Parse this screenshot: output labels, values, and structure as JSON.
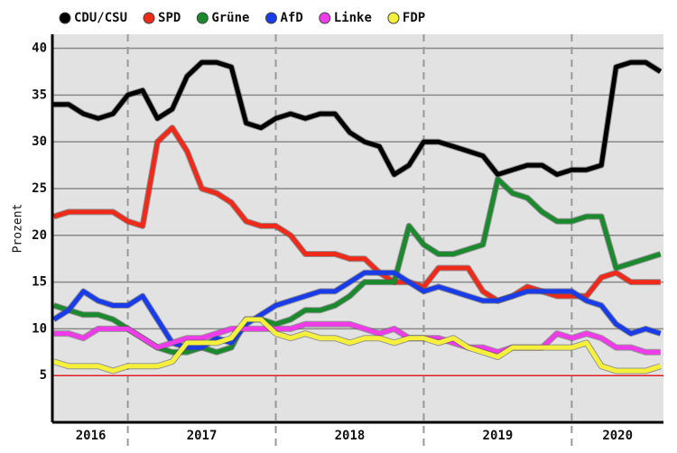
{
  "chart_data": {
    "type": "line",
    "ylabel": "Prozent",
    "x": [
      2016.5,
      2016.6,
      2016.7,
      2016.8,
      2016.9,
      2017.0,
      2017.1,
      2017.2,
      2017.3,
      2017.4,
      2017.5,
      2017.6,
      2017.7,
      2017.8,
      2017.9,
      2018.0,
      2018.1,
      2018.2,
      2018.3,
      2018.4,
      2018.5,
      2018.6,
      2018.7,
      2018.8,
      2018.9,
      2019.0,
      2019.1,
      2019.2,
      2019.3,
      2019.4,
      2019.5,
      2019.6,
      2019.7,
      2019.8,
      2019.9,
      2020.0,
      2020.1,
      2020.2,
      2020.3,
      2020.4,
      2020.5,
      2020.6
    ],
    "series": [
      {
        "name": "CDU/CSU",
        "color": "#000000",
        "values": [
          34,
          34,
          33,
          32.5,
          33,
          35,
          35.5,
          32.5,
          33.5,
          37,
          38.5,
          38.5,
          38,
          32,
          31.5,
          32.5,
          33,
          32.5,
          33,
          33,
          31,
          30,
          29.5,
          26.5,
          27.5,
          30,
          30,
          29.5,
          29,
          28.5,
          26.5,
          27,
          27.5,
          27.5,
          26.5,
          27,
          27,
          27.5,
          38,
          38.5,
          38.5,
          37.5
        ]
      },
      {
        "name": "SPD",
        "color": "#ee2a1b",
        "values": [
          22,
          22.5,
          22.5,
          22.5,
          22.5,
          21.5,
          21,
          30,
          31.5,
          29,
          25,
          24.5,
          23.5,
          21.5,
          21,
          21,
          20,
          18,
          18,
          18,
          17.5,
          17.5,
          16,
          15,
          15,
          14.5,
          16.5,
          16.5,
          16.5,
          14,
          13,
          13.5,
          14.5,
          14,
          13.5,
          13.5,
          13.5,
          15.5,
          16,
          15,
          15,
          15
        ]
      },
      {
        "name": "Grüne",
        "color": "#1b8a2e",
        "values": [
          12.5,
          12,
          11.5,
          11.5,
          11,
          10,
          9,
          8,
          7.5,
          7.5,
          8,
          7.5,
          8,
          11,
          11,
          10.5,
          11,
          12,
          12,
          12.5,
          13.5,
          15,
          15,
          15,
          21,
          19,
          18,
          18,
          18.5,
          19,
          26,
          24.5,
          24,
          22.5,
          21.5,
          21.5,
          22,
          22,
          16.5,
          17,
          17.5,
          18
        ]
      },
      {
        "name": "AfD",
        "color": "#1a3ce8",
        "values": [
          11,
          12,
          14,
          13,
          12.5,
          12.5,
          13.5,
          11,
          8.5,
          8,
          8,
          9,
          8.5,
          10.5,
          11.5,
          12.5,
          13,
          13.5,
          14,
          14,
          15,
          16,
          16,
          16,
          15,
          14,
          14.5,
          14,
          13.5,
          13,
          13,
          13.5,
          14,
          14,
          14,
          14,
          13,
          12.5,
          10.5,
          9.5,
          10,
          9.5
        ]
      },
      {
        "name": "Linke",
        "color": "#ee3ce8",
        "values": [
          9.5,
          9.5,
          9,
          10,
          10,
          10,
          9,
          8,
          8.5,
          9,
          9,
          9.5,
          10,
          10,
          10,
          10,
          10,
          10.5,
          10.5,
          10.5,
          10.5,
          10,
          9.5,
          10,
          9,
          9,
          9,
          8.5,
          8,
          8,
          7.5,
          8,
          8,
          8,
          9.5,
          9,
          9.5,
          9,
          8,
          8,
          7.5,
          7.5
        ]
      },
      {
        "name": "FDP",
        "color": "#f4f03c",
        "values": [
          6.5,
          6,
          6,
          6,
          5.5,
          6,
          6,
          6,
          6.5,
          8.5,
          8.5,
          8.5,
          9,
          11,
          11,
          9.5,
          9,
          9.5,
          9,
          9,
          8.5,
          9,
          9,
          8.5,
          9,
          9,
          8.5,
          9,
          8,
          7.5,
          7,
          8,
          8,
          8,
          8,
          8,
          8.5,
          6,
          5.5,
          5.5,
          5.5,
          6
        ]
      }
    ],
    "xlim": [
      2016.49,
      2020.62
    ],
    "xticks": [
      {
        "value": 2016.75,
        "label": "2016"
      },
      {
        "value": 2017.5,
        "label": "2017"
      },
      {
        "value": 2018.5,
        "label": "2018"
      },
      {
        "value": 2019.5,
        "label": "2019"
      },
      {
        "value": 2020.31,
        "label": "2020"
      }
    ],
    "xgrid": [
      2017,
      2018,
      2019,
      2020
    ],
    "ylim": [
      0,
      41.5
    ],
    "yticks": [
      5,
      10,
      15,
      20,
      25,
      30,
      35,
      40
    ],
    "threshold": 5,
    "threshold_color": "#e02020",
    "grid": true,
    "legend": "top"
  }
}
